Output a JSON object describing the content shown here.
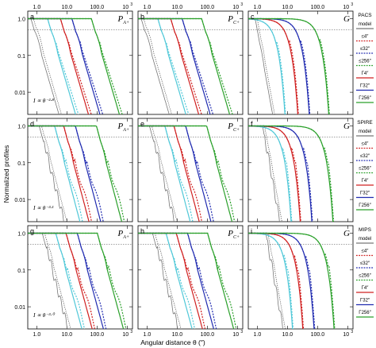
{
  "figure": {
    "ylabel": "Normalized profiles",
    "xlabel": "Angular distance θ (″)",
    "top_ticks": [
      "1.0",
      "10.0",
      "100.0",
      "10",
      "3"
    ],
    "bottom_ticks": [
      "1.0",
      "10.0",
      "100.0",
      "10",
      "3"
    ],
    "y_ticks": [
      "1.0",
      "0.1",
      "0.01"
    ]
  },
  "chart_data": [
    {
      "type": "line",
      "rows": [
        "PACS",
        "SPIRE",
        "MIPS"
      ],
      "columns": [
        "P_A",
        "P_C",
        "G"
      ],
      "x_scale": "log",
      "y_scale": "log",
      "xlim": [
        0.5,
        1500
      ],
      "ylim": [
        0.0025,
        1.6
      ],
      "reference_level": 0.5,
      "grid": false,
      "legend_position": "right",
      "legend_groups": [
        {
          "title": "PACS",
          "items": [
            "model",
            "≤4″",
            "≤32″",
            "≤256″",
            "Γ4″",
            "Γ32″",
            "Γ256″"
          ]
        },
        {
          "title": "SPIRE",
          "items": [
            "model",
            "≤4″",
            "≤32″",
            "≤256″",
            "Γ4″",
            "Γ32″",
            "Γ256″"
          ]
        },
        {
          "title": "MIPS",
          "items": [
            "model",
            "≤4″",
            "≤32″",
            "≤256″",
            "Γ4″",
            "Γ32″",
            "Γ256″"
          ]
        }
      ],
      "series_colors": {
        "model": "#777777",
        "s4": "#50c8d8",
        "s32": "#d02020",
        "s256": "#202bb0",
        "s2048": "#2aa02a"
      },
      "panels": [
        {
          "letter": "a",
          "kernel": "P",
          "sub": "A+",
          "slope_label": "I ∝ θ⁻²·⁸",
          "slope": -2.8,
          "half_widths": [
            0.8,
            2.8,
            7.5,
            18,
            80
          ],
          "wiggle": false
        },
        {
          "letter": "b",
          "kernel": "P",
          "sub": "C+",
          "slope_label": "",
          "slope": -2.8,
          "half_widths": [
            0.8,
            2.8,
            7.5,
            18,
            80
          ],
          "wiggle": false
        },
        {
          "letter": "c",
          "kernel": "G",
          "sub": "",
          "slope_label": "",
          "slope": -4.5,
          "half_widths": [
            0.8,
            2.8,
            7.5,
            18,
            80
          ],
          "wiggle": false
        },
        {
          "letter": "d",
          "kernel": "P",
          "sub": "A+",
          "slope_label": "I ∝ θ⁻³·¹",
          "slope": -3.1,
          "half_widths": [
            1.4,
            4.5,
            9,
            22,
            110
          ],
          "wiggle": true
        },
        {
          "letter": "e",
          "kernel": "P",
          "sub": "C+",
          "slope_label": "",
          "slope": -3.1,
          "half_widths": [
            1.4,
            4.5,
            9,
            22,
            110
          ],
          "wiggle": true
        },
        {
          "letter": "f",
          "kernel": "G",
          "sub": "",
          "slope_label": "",
          "slope": -4.5,
          "half_widths": [
            1.4,
            4.5,
            9,
            22,
            110
          ],
          "wiggle": true
        },
        {
          "letter": "g",
          "kernel": "P",
          "sub": "A+",
          "slope_label": "I ∝ θ⁻³·⁰",
          "slope": -3.0,
          "half_widths": [
            1.8,
            5,
            11,
            26,
            120
          ],
          "wiggle": true
        },
        {
          "letter": "h",
          "kernel": "P",
          "sub": "C+",
          "slope_label": "",
          "slope": -3.0,
          "half_widths": [
            1.8,
            5,
            11,
            26,
            120
          ],
          "wiggle": true
        },
        {
          "letter": "i",
          "kernel": "G",
          "sub": "",
          "slope_label": "",
          "slope": -4.5,
          "half_widths": [
            1.8,
            5,
            11,
            26,
            120
          ],
          "wiggle": true
        }
      ]
    }
  ]
}
